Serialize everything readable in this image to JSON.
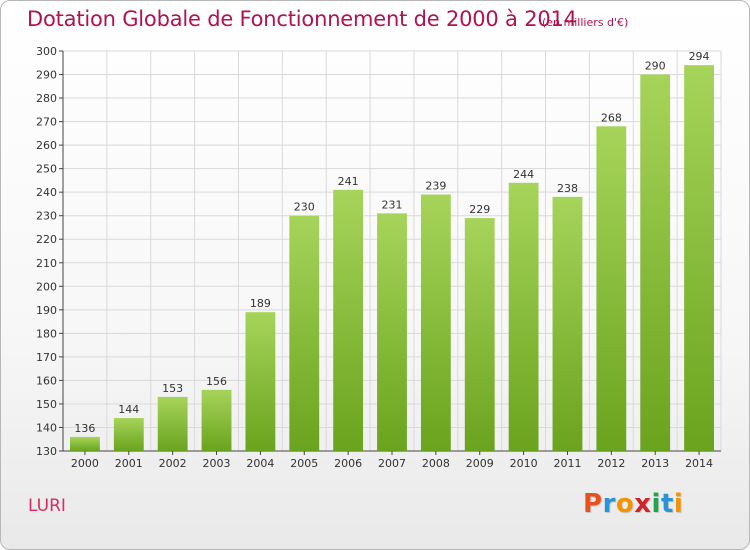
{
  "header": {
    "title": "Dotation Globale de Fonctionnement de 2000 à 2014",
    "subtitle": "(en milliers d'€)"
  },
  "footer": {
    "commune": "LURI",
    "logo_text": "Proxiti"
  },
  "colors": {
    "title": "#b2124f",
    "commune": "#d62d63",
    "bar_light": "#a6d45a",
    "bar_dark": "#6aa31d",
    "grid": "#d9d9d9"
  },
  "chart_data": {
    "type": "bar",
    "title": "Dotation Globale de Fonctionnement de 2000 à 2014",
    "subtitle": "(en milliers d'€)",
    "categories": [
      "2000",
      "2001",
      "2002",
      "2003",
      "2004",
      "2005",
      "2006",
      "2007",
      "2008",
      "2009",
      "2010",
      "2011",
      "2012",
      "2013",
      "2014"
    ],
    "values": [
      136,
      144,
      153,
      156,
      189,
      230,
      241,
      231,
      239,
      229,
      244,
      238,
      268,
      290,
      294
    ],
    "xlabel": "",
    "ylabel": "",
    "ylim": [
      130,
      300
    ],
    "yticks": [
      130,
      140,
      150,
      160,
      170,
      180,
      190,
      200,
      210,
      220,
      230,
      240,
      250,
      260,
      270,
      280,
      290,
      300
    ],
    "grid": true,
    "legend": "none"
  }
}
